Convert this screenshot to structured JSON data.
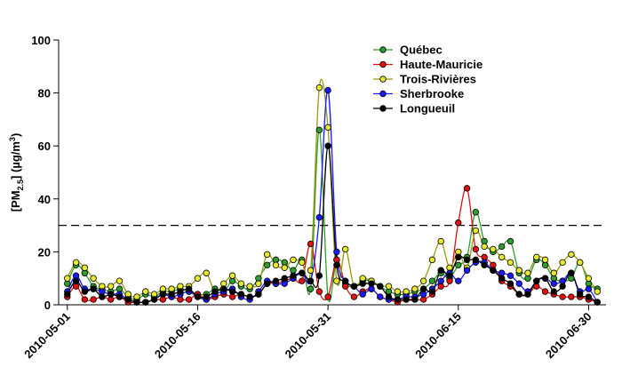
{
  "chart_data": {
    "type": "line",
    "ylabel": [
      "[PM",
      "2.5",
      "] (µg/m",
      "3",
      ")"
    ],
    "x": [
      "2010-05-01",
      "2010-05-02",
      "2010-05-03",
      "2010-05-04",
      "2010-05-05",
      "2010-05-06",
      "2010-05-07",
      "2010-05-08",
      "2010-05-09",
      "2010-05-10",
      "2010-05-11",
      "2010-05-12",
      "2010-05-13",
      "2010-05-14",
      "2010-05-15",
      "2010-05-16",
      "2010-05-17",
      "2010-05-18",
      "2010-05-19",
      "2010-05-20",
      "2010-05-21",
      "2010-05-22",
      "2010-05-23",
      "2010-05-24",
      "2010-05-25",
      "2010-05-26",
      "2010-05-27",
      "2010-05-28",
      "2010-05-29",
      "2010-05-30",
      "2010-05-31",
      "2010-06-01",
      "2010-06-02",
      "2010-06-03",
      "2010-06-04",
      "2010-06-05",
      "2010-06-06",
      "2010-06-07",
      "2010-06-08",
      "2010-06-09",
      "2010-06-10",
      "2010-06-11",
      "2010-06-12",
      "2010-06-13",
      "2010-06-14",
      "2010-06-15",
      "2010-06-16",
      "2010-06-17",
      "2010-06-18",
      "2010-06-19",
      "2010-06-20",
      "2010-06-21",
      "2010-06-22",
      "2010-06-23",
      "2010-06-24",
      "2010-06-25",
      "2010-06-26",
      "2010-06-27",
      "2010-06-28",
      "2010-06-29",
      "2010-06-30",
      "2010-07-01"
    ],
    "series": [
      {
        "name": "Québec",
        "color": "#2e9e2e",
        "values": [
          8,
          15,
          12,
          7,
          6,
          5,
          6,
          3,
          2,
          4,
          3,
          5,
          5,
          6,
          5,
          4,
          4,
          6,
          5,
          9,
          7,
          6,
          10,
          15,
          17,
          16,
          13,
          17,
          6,
          66,
          3,
          17,
          8,
          7,
          9,
          9,
          7,
          5,
          4,
          4,
          5,
          6,
          9,
          12,
          10,
          15,
          18,
          35,
          24,
          20,
          22,
          24,
          12,
          10,
          17,
          15,
          10,
          9,
          10,
          16,
          8,
          6
        ]
      },
      {
        "name": "Haute-Mauricie",
        "color": "#e01010",
        "values": [
          3,
          7,
          2,
          2,
          3,
          2,
          3,
          1,
          1,
          1,
          2,
          2,
          3,
          2,
          2,
          4,
          2,
          3,
          4,
          3,
          4,
          3,
          4,
          8,
          8,
          9,
          10,
          9,
          23,
          5,
          3,
          17,
          7,
          3,
          5,
          6,
          3,
          2,
          1,
          2,
          2,
          2,
          4,
          7,
          9,
          31,
          44,
          21,
          18,
          15,
          9,
          7,
          4,
          4,
          7,
          5,
          4,
          3,
          3,
          3,
          2,
          1
        ]
      },
      {
        "name": "Trois-Rivières",
        "color": "#e8e830",
        "values": [
          10,
          16,
          14,
          10,
          7,
          7,
          9,
          4,
          3,
          5,
          4,
          6,
          6,
          7,
          7,
          10,
          12,
          5,
          8,
          11,
          8,
          7,
          8,
          19,
          15,
          14,
          17,
          16,
          13,
          82,
          67,
          9,
          21,
          7,
          10,
          9,
          7,
          7,
          5,
          5,
          6,
          9,
          17,
          24,
          14,
          20,
          14,
          28,
          22,
          21,
          18,
          16,
          13,
          12,
          18,
          17,
          12,
          16,
          19,
          16,
          10,
          5
        ]
      },
      {
        "name": "Sherbrooke",
        "color": "#1a1aff",
        "values": [
          5,
          11,
          6,
          6,
          5,
          4,
          4,
          2,
          1,
          1,
          2,
          4,
          3,
          4,
          5,
          3,
          2,
          4,
          5,
          6,
          3,
          2,
          5,
          9,
          8,
          8,
          10,
          12,
          9,
          33,
          81,
          20,
          9,
          7,
          4,
          6,
          3,
          2,
          2,
          3,
          3,
          4,
          6,
          9,
          12,
          9,
          13,
          16,
          16,
          13,
          12,
          11,
          8,
          5,
          9,
          10,
          8,
          9,
          12,
          5,
          6,
          1
        ]
      },
      {
        "name": "Longueuil",
        "color": "#000000",
        "values": [
          4,
          9,
          5,
          6,
          3,
          4,
          3,
          2,
          1,
          1,
          2,
          4,
          4,
          5,
          6,
          3,
          3,
          5,
          6,
          5,
          4,
          3,
          4,
          8,
          9,
          10,
          11,
          12,
          9,
          11,
          60,
          15,
          9,
          7,
          8,
          8,
          7,
          3,
          2,
          2,
          2,
          6,
          5,
          13,
          11,
          18,
          17,
          17,
          15,
          13,
          10,
          8,
          4,
          4,
          9,
          10,
          5,
          7,
          12,
          4,
          3,
          1
        ]
      }
    ],
    "reference_line": 30,
    "xlim": [
      "2010-04-30",
      "2010-07-02"
    ],
    "xticks": [
      "2010-05-01",
      "2010-05-16",
      "2010-05-31",
      "2010-06-15",
      "2010-06-30"
    ],
    "ylim": [
      0,
      100
    ],
    "yticks": [
      0,
      20,
      40,
      60,
      80,
      100
    ],
    "legend": "upper right"
  }
}
